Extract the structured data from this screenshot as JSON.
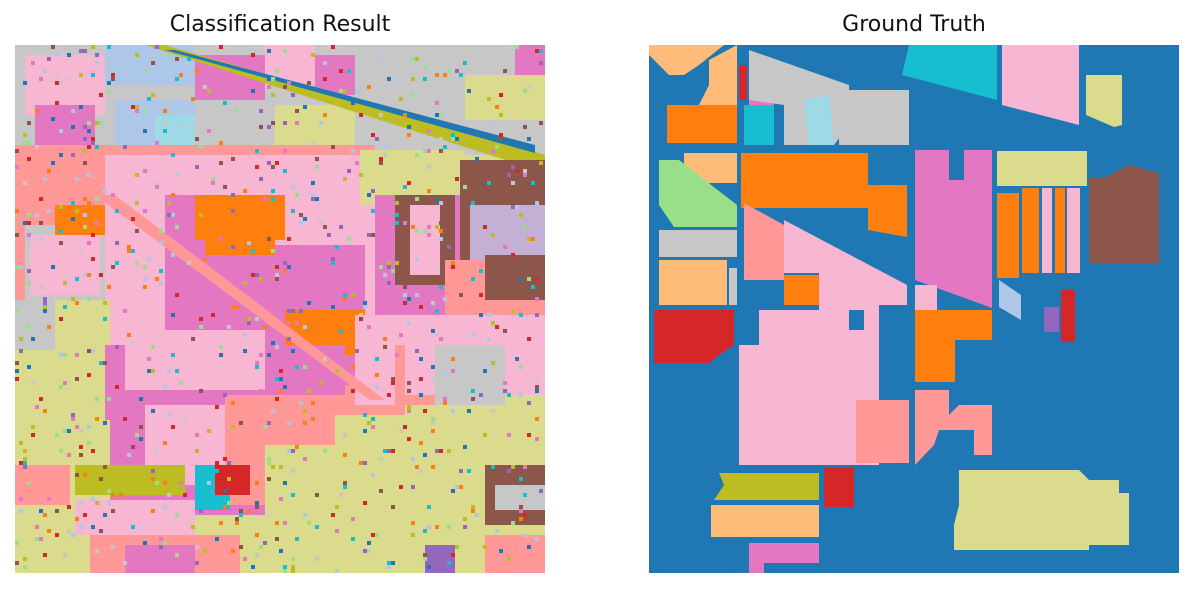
{
  "panels": {
    "left_title": "Classification Result",
    "right_title": "Ground Truth"
  },
  "palette": {
    "background": "#1f77b4",
    "orange": "#ff7f0e",
    "light_orange": "#ffbb78",
    "red": "#d62728",
    "pink_salmon": "#ff9896",
    "light_green": "#98df8a",
    "purple": "#9467bd",
    "lavender": "#c5b0d5",
    "brown": "#8c564b",
    "pink": "#e377c2",
    "light_pink": "#f7b6d2",
    "gray": "#c7c7c7",
    "olive": "#bcbd22",
    "khaki": "#dbdb8d",
    "cyan": "#17becf",
    "light_cyan": "#9edae5",
    "light_blue": "#aec7e8"
  }
}
